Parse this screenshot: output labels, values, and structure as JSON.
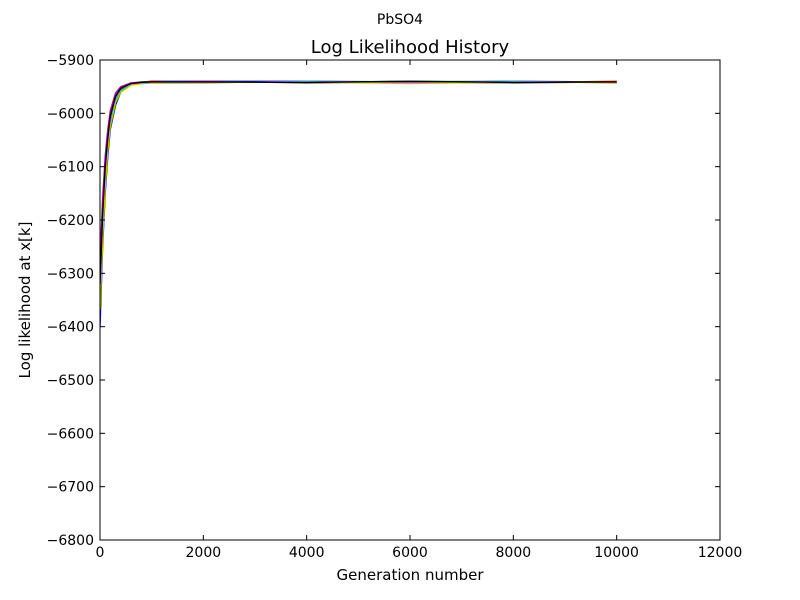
{
  "chart_data": {
    "type": "line",
    "suptitle": "PbSO4",
    "title": "Log Likelihood History",
    "xlabel": "Generation number",
    "ylabel": "Log likelihood at x[k]",
    "xlim": [
      0,
      12000
    ],
    "ylim": [
      -6800,
      -5900
    ],
    "x_ticks": [
      0,
      2000,
      4000,
      6000,
      8000,
      10000,
      12000
    ],
    "y_ticks": [
      -5900,
      -6000,
      -6100,
      -6200,
      -6300,
      -6400,
      -6500,
      -6600,
      -6700,
      -6800
    ],
    "x_tick_labels": [
      "0",
      "2000",
      "4000",
      "6000",
      "8000",
      "10000",
      "12000"
    ],
    "y_tick_labels": [
      "−5900",
      "−6000",
      "−6100",
      "−6200",
      "−6300",
      "−6400",
      "−6500",
      "−6600",
      "−6700",
      "−6800"
    ],
    "grid": false,
    "legend": "none",
    "series_colors": [
      "#0000ff",
      "#008000",
      "#ff0000",
      "#00bfbf",
      "#bf00bf",
      "#bfbf00",
      "#000000"
    ],
    "series": [
      {
        "x": [
          0,
          50,
          100,
          150,
          200,
          300,
          400,
          600,
          800,
          1000,
          2000,
          4000,
          6000,
          8000,
          10000
        ],
        "values": [
          -6400,
          -6250,
          -6150,
          -6080,
          -6030,
          -5985,
          -5960,
          -5945,
          -5942,
          -5940,
          -5940,
          -5940,
          -5941,
          -5940,
          -5941
        ]
      },
      {
        "x": [
          0,
          50,
          100,
          150,
          200,
          300,
          400,
          600,
          800,
          1000,
          2000,
          4000,
          6000,
          8000,
          10000
        ],
        "values": [
          -6350,
          -6200,
          -6110,
          -6050,
          -6010,
          -5970,
          -5955,
          -5945,
          -5943,
          -5942,
          -5941,
          -5942,
          -5940,
          -5941,
          -5942
        ]
      },
      {
        "x": [
          0,
          50,
          100,
          150,
          200,
          300,
          400,
          600,
          800,
          1000,
          2000,
          4000,
          6000,
          8000,
          10000
        ],
        "values": [
          -6300,
          -6180,
          -6090,
          -6035,
          -6000,
          -5965,
          -5952,
          -5944,
          -5941,
          -5940,
          -5942,
          -5941,
          -5943,
          -5942,
          -5940
        ]
      },
      {
        "x": [
          0,
          50,
          100,
          150,
          200,
          300,
          400,
          600,
          800,
          1000,
          2000,
          4000,
          6000,
          8000,
          10000
        ],
        "values": [
          -6330,
          -6220,
          -6130,
          -6060,
          -6020,
          -5975,
          -5958,
          -5946,
          -5944,
          -5943,
          -5943,
          -5940,
          -5942,
          -5940,
          -5943
        ]
      },
      {
        "x": [
          0,
          50,
          100,
          150,
          200,
          300,
          400,
          600,
          800,
          1000,
          2000,
          4000,
          6000,
          8000,
          10000
        ],
        "values": [
          -6280,
          -6160,
          -6080,
          -6030,
          -5995,
          -5962,
          -5950,
          -5943,
          -5941,
          -5941,
          -5940,
          -5943,
          -5941,
          -5943,
          -5941
        ]
      },
      {
        "x": [
          0,
          50,
          100,
          150,
          200,
          300,
          400,
          600,
          800,
          1000,
          2000,
          4000,
          6000,
          8000,
          10000
        ],
        "values": [
          -6370,
          -6240,
          -6140,
          -6070,
          -6025,
          -5980,
          -5960,
          -5947,
          -5944,
          -5942,
          -5942,
          -5941,
          -5944,
          -5941,
          -5942
        ]
      },
      {
        "x": [
          0,
          50,
          100,
          150,
          200,
          300,
          400,
          600,
          800,
          1000,
          2000,
          4000,
          6000,
          8000,
          10000
        ],
        "values": [
          -6320,
          -6190,
          -6100,
          -6045,
          -6005,
          -5968,
          -5953,
          -5944,
          -5942,
          -5941,
          -5941,
          -5942,
          -5940,
          -5942,
          -5941
        ]
      }
    ]
  }
}
